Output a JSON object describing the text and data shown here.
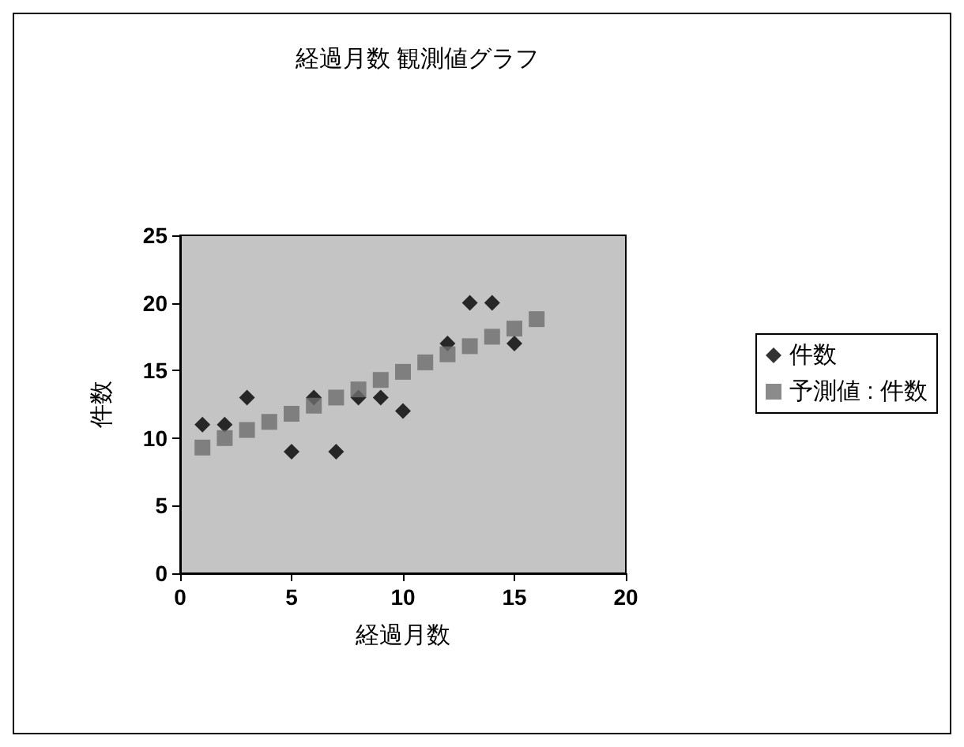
{
  "chart_data": {
    "type": "scatter",
    "title": "経過月数 観測値グラフ",
    "xlabel": "経過月数",
    "ylabel": "件数",
    "xlim": [
      0,
      20
    ],
    "xticks": [
      0,
      5,
      10,
      15,
      20
    ],
    "ylim": [
      0,
      25
    ],
    "yticks": [
      0,
      5,
      10,
      15,
      20,
      25
    ],
    "grid": false,
    "legend": "right",
    "series": [
      {
        "name": "件数",
        "color": "#000000",
        "marker": "diamond",
        "x": [
          1,
          2,
          3,
          4,
          5,
          6,
          7,
          8,
          9,
          10,
          11,
          12,
          13,
          14,
          15
        ],
        "values": [
          11,
          11,
          13,
          null,
          9,
          13,
          9,
          13,
          13,
          12,
          null,
          17,
          20,
          20,
          17
        ]
      },
      {
        "name": "予測値 : 件数",
        "color": "#6e6e6e",
        "marker": "square",
        "x": [
          1,
          2,
          3,
          4,
          5,
          6,
          7,
          8,
          9,
          10,
          11,
          12,
          13,
          14,
          15,
          16
        ],
        "values": [
          9.3,
          10,
          10.6,
          11.2,
          11.8,
          12.4,
          13,
          13.6,
          14.3,
          14.9,
          15.6,
          16.2,
          16.8,
          17.5,
          18.1,
          18.8
        ]
      }
    ]
  }
}
